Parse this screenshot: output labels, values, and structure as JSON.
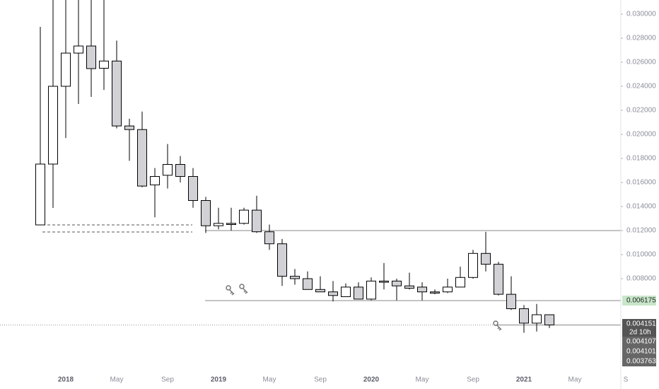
{
  "chart_data": {
    "type": "candlestick",
    "categories": [
      null,
      null,
      "2018",
      null,
      null,
      null,
      "May",
      null,
      null,
      null,
      "Sep",
      null,
      null,
      null,
      "2019",
      null,
      null,
      null,
      "May",
      null,
      null,
      null,
      "Sep",
      null,
      null,
      null,
      "2020",
      null,
      null,
      null,
      "May",
      null,
      null,
      null,
      "Sep",
      null,
      null,
      null,
      "2021",
      null,
      null,
      null,
      "May",
      null,
      null,
      null,
      "S"
    ],
    "open": [
      0.01247,
      0.01753,
      0.024,
      0.02676,
      0.02735,
      0.0255,
      0.0261,
      0.0207,
      0.0204,
      0.0158,
      0.0166,
      0.0175,
      0.0165,
      0.0145,
      0.0124,
      0.0126,
      0.0126,
      0.0137,
      0.0119,
      0.0109,
      0.0082,
      0.008,
      0.0071,
      0.0069,
      0.0065,
      0.0073,
      0.0063,
      0.0078,
      0.0078,
      0.0074,
      0.0073,
      0.0069,
      0.0069,
      0.0073,
      0.0081,
      0.0101,
      0.0092,
      0.0067,
      0.0055,
      0.0043,
      0.005,
      null,
      null,
      null,
      null,
      null,
      null
    ],
    "high": [
      0.02894,
      0.0315,
      0.0315,
      0.0315,
      0.0315,
      0.0315,
      0.0278,
      0.0213,
      0.0219,
      0.0172,
      0.0192,
      0.0182,
      0.0172,
      0.0148,
      0.0139,
      0.0139,
      0.0139,
      0.0149,
      0.0125,
      0.0113,
      0.0088,
      0.0086,
      0.0082,
      0.0078,
      0.0076,
      0.0077,
      0.0081,
      0.0093,
      0.008,
      0.0085,
      0.0077,
      0.0071,
      0.008,
      0.009,
      0.0104,
      0.0119,
      0.0094,
      0.0082,
      0.0058,
      0.0059,
      0.005,
      null,
      null,
      null,
      null,
      null,
      null
    ],
    "low": [
      0.01247,
      0.01388,
      0.0197,
      0.02253,
      0.02312,
      0.0237,
      0.0205,
      0.0178,
      0.0156,
      0.0131,
      0.0155,
      0.016,
      0.0139,
      0.0118,
      0.0121,
      0.012,
      0.0125,
      0.0118,
      0.0104,
      0.0074,
      0.0075,
      0.0071,
      0.0069,
      0.0061,
      0.0065,
      0.0063,
      0.0062,
      0.0071,
      0.0062,
      0.0071,
      0.0062,
      0.0067,
      0.0068,
      0.0074,
      0.008,
      0.0086,
      0.0066,
      0.0054,
      0.0035,
      0.0036,
      0.0039,
      null,
      null,
      null,
      null,
      null,
      null
    ],
    "close": [
      0.01753,
      0.024,
      0.02676,
      0.02735,
      0.02547,
      0.0261,
      0.0207,
      0.0204,
      0.0157,
      0.0165,
      0.0175,
      0.0165,
      0.0145,
      0.0124,
      0.0126,
      0.0125,
      0.0137,
      0.0119,
      0.0109,
      0.0082,
      0.008,
      0.0071,
      0.0069,
      0.0066,
      0.0073,
      0.0063,
      0.0078,
      0.0077,
      0.0074,
      0.0072,
      0.0069,
      0.0068,
      0.0073,
      0.0081,
      0.0101,
      0.0092,
      0.0067,
      0.0055,
      0.0043,
      0.005,
      0.00415,
      null,
      null,
      null,
      null,
      null,
      null
    ],
    "up_color": "#ffffff",
    "down_color": "#d1d1d6",
    "ylim": [
      0.000588,
      0.031176
    ],
    "yticks": [
      {
        "value": 0.03,
        "label": "0.030000"
      },
      {
        "value": 0.028,
        "label": "0.028000"
      },
      {
        "value": 0.026,
        "label": "0.026000"
      },
      {
        "value": 0.024,
        "label": "0.024000"
      },
      {
        "value": 0.022,
        "label": "0.022000"
      },
      {
        "value": 0.02,
        "label": "0.020000"
      },
      {
        "value": 0.018,
        "label": "0.018000"
      },
      {
        "value": 0.016,
        "label": "0.016000"
      },
      {
        "value": 0.014,
        "label": "0.014000"
      },
      {
        "value": 0.012,
        "label": "0.012000"
      },
      {
        "value": 0.01,
        "label": "0.010000"
      },
      {
        "value": 0.008,
        "label": "0.008000"
      }
    ],
    "levels": [
      0.01247,
      0.01188,
      0.012,
      0.006175,
      0.00415
    ],
    "price_labels": [
      {
        "value": 0.006175,
        "label": "0.006175"
      },
      {
        "value": 0.004151,
        "label": "0.004151"
      },
      {
        "value": 0.004107,
        "label": "0.004107"
      },
      {
        "value": 0.004101,
        "label": "0.004101"
      },
      {
        "value": 0.003763,
        "label": "0.003763"
      }
    ],
    "countdown": "2d 10h"
  }
}
